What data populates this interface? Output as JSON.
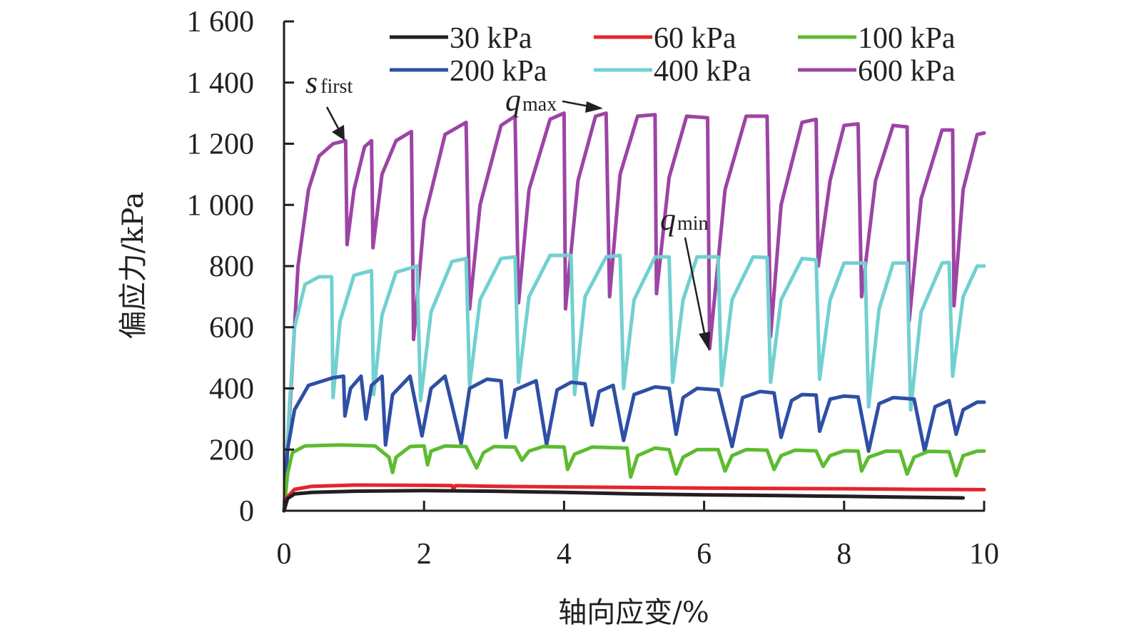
{
  "chart_data": {
    "type": "line",
    "title": "",
    "xlabel": "轴向应变/%",
    "ylabel": "偏应力/kPa",
    "xlim": [
      0,
      10
    ],
    "ylim": [
      0,
      1600
    ],
    "xticks": [
      0,
      2,
      4,
      6,
      8,
      10
    ],
    "xtick_labels": [
      "0",
      "2",
      "4",
      "6",
      "8",
      "10"
    ],
    "yticks": [
      0,
      200,
      400,
      600,
      800,
      1000,
      1200,
      1400,
      1600
    ],
    "ytick_labels": [
      "0",
      "200",
      "400",
      "600",
      "800",
      "1 000",
      "1 200",
      "1 400",
      "1 600"
    ],
    "grid": false,
    "legend_position": "top-right",
    "legend": [
      "30 kPa",
      "60 kPa",
      "100 kPa",
      "200 kPa",
      "400 kPa",
      "600 kPa"
    ],
    "annotations": [
      {
        "main": "s",
        "sub": "first",
        "points_to": [
          0.87,
          1210
        ]
      },
      {
        "main": "q",
        "sub": "max",
        "points_to": [
          4.6,
          1310
        ]
      },
      {
        "main": "q",
        "sub": "min",
        "points_to": [
          6.05,
          530
        ]
      }
    ],
    "series": [
      {
        "name": "30 kPa",
        "color": "#231f20",
        "points": [
          [
            0,
            0
          ],
          [
            0.05,
            40
          ],
          [
            0.15,
            55
          ],
          [
            0.4,
            60
          ],
          [
            1,
            64
          ],
          [
            2,
            66
          ],
          [
            3,
            64
          ],
          [
            4,
            60
          ],
          [
            5,
            55
          ],
          [
            6,
            52
          ],
          [
            7,
            50
          ],
          [
            8,
            47
          ],
          [
            9,
            44
          ],
          [
            9.7,
            42
          ]
        ]
      },
      {
        "name": "60 kPa",
        "color": "#e3262b",
        "points": [
          [
            0,
            0
          ],
          [
            0.05,
            45
          ],
          [
            0.15,
            70
          ],
          [
            0.4,
            80
          ],
          [
            1,
            84
          ],
          [
            2,
            83
          ],
          [
            2.4,
            82
          ],
          [
            2.42,
            70
          ],
          [
            2.45,
            82
          ],
          [
            3,
            80
          ],
          [
            4,
            78
          ],
          [
            5,
            76
          ],
          [
            6,
            74
          ],
          [
            7,
            73
          ],
          [
            8,
            72
          ],
          [
            9,
            70
          ],
          [
            10,
            69
          ]
        ]
      },
      {
        "name": "100 kPa",
        "color": "#5dbb2f",
        "points": [
          [
            0,
            0
          ],
          [
            0.05,
            120
          ],
          [
            0.12,
            190
          ],
          [
            0.3,
            212
          ],
          [
            0.8,
            215
          ],
          [
            1.3,
            212
          ],
          [
            1.5,
            175
          ],
          [
            1.55,
            125
          ],
          [
            1.6,
            175
          ],
          [
            1.8,
            210
          ],
          [
            2,
            212
          ],
          [
            2.05,
            150
          ],
          [
            2.1,
            195
          ],
          [
            2.3,
            212
          ],
          [
            2.6,
            210
          ],
          [
            2.75,
            140
          ],
          [
            2.85,
            190
          ],
          [
            3,
            210
          ],
          [
            3.3,
            208
          ],
          [
            3.4,
            165
          ],
          [
            3.5,
            195
          ],
          [
            3.7,
            210
          ],
          [
            4,
            208
          ],
          [
            4.05,
            135
          ],
          [
            4.15,
            185
          ],
          [
            4.4,
            208
          ],
          [
            4.9,
            205
          ],
          [
            4.95,
            110
          ],
          [
            5.05,
            180
          ],
          [
            5.3,
            205
          ],
          [
            5.5,
            200
          ],
          [
            5.6,
            120
          ],
          [
            5.7,
            175
          ],
          [
            5.9,
            200
          ],
          [
            6.2,
            200
          ],
          [
            6.3,
            130
          ],
          [
            6.4,
            180
          ],
          [
            6.6,
            200
          ],
          [
            6.9,
            198
          ],
          [
            7.0,
            135
          ],
          [
            7.1,
            180
          ],
          [
            7.3,
            198
          ],
          [
            7.6,
            196
          ],
          [
            7.7,
            145
          ],
          [
            7.8,
            180
          ],
          [
            8.0,
            196
          ],
          [
            8.2,
            195
          ],
          [
            8.25,
            130
          ],
          [
            8.35,
            175
          ],
          [
            8.6,
            195
          ],
          [
            8.8,
            194
          ],
          [
            8.9,
            120
          ],
          [
            9.0,
            175
          ],
          [
            9.2,
            194
          ],
          [
            9.5,
            193
          ],
          [
            9.6,
            115
          ],
          [
            9.7,
            180
          ],
          [
            9.9,
            195
          ],
          [
            10,
            195
          ]
        ]
      },
      {
        "name": "200 kPa",
        "color": "#2e4fa5",
        "points": [
          [
            0,
            0
          ],
          [
            0.05,
            200
          ],
          [
            0.15,
            330
          ],
          [
            0.35,
            410
          ],
          [
            0.7,
            435
          ],
          [
            0.85,
            440
          ],
          [
            0.87,
            310
          ],
          [
            0.95,
            400
          ],
          [
            1.1,
            440
          ],
          [
            1.17,
            300
          ],
          [
            1.25,
            410
          ],
          [
            1.4,
            440
          ],
          [
            1.45,
            215
          ],
          [
            1.55,
            380
          ],
          [
            1.8,
            440
          ],
          [
            1.97,
            245
          ],
          [
            2.1,
            400
          ],
          [
            2.3,
            440
          ],
          [
            2.53,
            220
          ],
          [
            2.65,
            400
          ],
          [
            2.9,
            430
          ],
          [
            3.1,
            425
          ],
          [
            3.17,
            240
          ],
          [
            3.3,
            395
          ],
          [
            3.6,
            425
          ],
          [
            3.75,
            215
          ],
          [
            3.9,
            395
          ],
          [
            4.1,
            420
          ],
          [
            4.3,
            415
          ],
          [
            4.4,
            280
          ],
          [
            4.5,
            390
          ],
          [
            4.7,
            410
          ],
          [
            4.85,
            230
          ],
          [
            5.0,
            380
          ],
          [
            5.3,
            405
          ],
          [
            5.5,
            400
          ],
          [
            5.6,
            250
          ],
          [
            5.7,
            370
          ],
          [
            5.9,
            400
          ],
          [
            6.2,
            395
          ],
          [
            6.4,
            210
          ],
          [
            6.55,
            370
          ],
          [
            6.8,
            390
          ],
          [
            7.0,
            385
          ],
          [
            7.1,
            240
          ],
          [
            7.25,
            360
          ],
          [
            7.4,
            380
          ],
          [
            7.6,
            378
          ],
          [
            7.65,
            260
          ],
          [
            7.8,
            365
          ],
          [
            8.0,
            375
          ],
          [
            8.2,
            372
          ],
          [
            8.35,
            195
          ],
          [
            8.5,
            350
          ],
          [
            8.7,
            370
          ],
          [
            9.0,
            365
          ],
          [
            9.15,
            195
          ],
          [
            9.3,
            340
          ],
          [
            9.5,
            360
          ],
          [
            9.6,
            250
          ],
          [
            9.7,
            330
          ],
          [
            9.9,
            355
          ],
          [
            10,
            355
          ]
        ]
      },
      {
        "name": "400 kPa",
        "color": "#72d0d0",
        "points": [
          [
            0,
            0
          ],
          [
            0.08,
            350
          ],
          [
            0.15,
            600
          ],
          [
            0.3,
            740
          ],
          [
            0.5,
            765
          ],
          [
            0.68,
            765
          ],
          [
            0.7,
            370
          ],
          [
            0.8,
            620
          ],
          [
            1.0,
            770
          ],
          [
            1.25,
            785
          ],
          [
            1.28,
            380
          ],
          [
            1.4,
            640
          ],
          [
            1.6,
            780
          ],
          [
            1.9,
            800
          ],
          [
            1.95,
            360
          ],
          [
            2.1,
            650
          ],
          [
            2.4,
            815
          ],
          [
            2.6,
            825
          ],
          [
            2.65,
            410
          ],
          [
            2.8,
            690
          ],
          [
            3.1,
            825
          ],
          [
            3.3,
            830
          ],
          [
            3.35,
            420
          ],
          [
            3.5,
            700
          ],
          [
            3.8,
            835
          ],
          [
            4.1,
            835
          ],
          [
            4.15,
            380
          ],
          [
            4.3,
            700
          ],
          [
            4.6,
            830
          ],
          [
            4.8,
            835
          ],
          [
            4.85,
            400
          ],
          [
            5.0,
            690
          ],
          [
            5.3,
            830
          ],
          [
            5.5,
            830
          ],
          [
            5.55,
            420
          ],
          [
            5.7,
            690
          ],
          [
            5.9,
            830
          ],
          [
            6.2,
            830
          ],
          [
            6.25,
            410
          ],
          [
            6.4,
            690
          ],
          [
            6.7,
            830
          ],
          [
            6.9,
            828
          ],
          [
            6.95,
            420
          ],
          [
            7.1,
            690
          ],
          [
            7.4,
            825
          ],
          [
            7.6,
            820
          ],
          [
            7.65,
            430
          ],
          [
            7.8,
            690
          ],
          [
            8.0,
            810
          ],
          [
            8.3,
            810
          ],
          [
            8.35,
            340
          ],
          [
            8.5,
            660
          ],
          [
            8.7,
            810
          ],
          [
            8.9,
            810
          ],
          [
            8.95,
            330
          ],
          [
            9.1,
            650
          ],
          [
            9.4,
            810
          ],
          [
            9.5,
            812
          ],
          [
            9.55,
            440
          ],
          [
            9.7,
            700
          ],
          [
            9.9,
            800
          ],
          [
            10,
            800
          ]
        ]
      },
      {
        "name": "600 kPa",
        "color": "#9d44a5",
        "points": [
          [
            0,
            0
          ],
          [
            0.1,
            400
          ],
          [
            0.2,
            800
          ],
          [
            0.35,
            1050
          ],
          [
            0.5,
            1160
          ],
          [
            0.7,
            1200
          ],
          [
            0.88,
            1210
          ],
          [
            0.9,
            870
          ],
          [
            1.0,
            1050
          ],
          [
            1.15,
            1190
          ],
          [
            1.25,
            1210
          ],
          [
            1.27,
            860
          ],
          [
            1.4,
            1100
          ],
          [
            1.6,
            1210
          ],
          [
            1.82,
            1240
          ],
          [
            1.85,
            560
          ],
          [
            2.0,
            950
          ],
          [
            2.3,
            1230
          ],
          [
            2.6,
            1270
          ],
          [
            2.65,
            660
          ],
          [
            2.8,
            1000
          ],
          [
            3.1,
            1260
          ],
          [
            3.3,
            1290
          ],
          [
            3.35,
            680
          ],
          [
            3.5,
            1050
          ],
          [
            3.8,
            1280
          ],
          [
            4.0,
            1300
          ],
          [
            4.02,
            660
          ],
          [
            4.2,
            1080
          ],
          [
            4.45,
            1290
          ],
          [
            4.6,
            1300
          ],
          [
            4.65,
            700
          ],
          [
            4.8,
            1100
          ],
          [
            5.05,
            1290
          ],
          [
            5.3,
            1295
          ],
          [
            5.32,
            710
          ],
          [
            5.5,
            1090
          ],
          [
            5.75,
            1290
          ],
          [
            6.05,
            1285
          ],
          [
            6.08,
            530
          ],
          [
            6.3,
            1050
          ],
          [
            6.6,
            1290
          ],
          [
            6.9,
            1290
          ],
          [
            6.95,
            570
          ],
          [
            7.1,
            1000
          ],
          [
            7.4,
            1270
          ],
          [
            7.6,
            1280
          ],
          [
            7.63,
            800
          ],
          [
            7.8,
            1080
          ],
          [
            8.0,
            1260
          ],
          [
            8.2,
            1265
          ],
          [
            8.25,
            700
          ],
          [
            8.45,
            1080
          ],
          [
            8.7,
            1260
          ],
          [
            8.9,
            1255
          ],
          [
            8.93,
            620
          ],
          [
            9.1,
            1020
          ],
          [
            9.4,
            1245
          ],
          [
            9.55,
            1245
          ],
          [
            9.57,
            670
          ],
          [
            9.7,
            1050
          ],
          [
            9.9,
            1230
          ],
          [
            10,
            1235
          ]
        ]
      }
    ]
  }
}
